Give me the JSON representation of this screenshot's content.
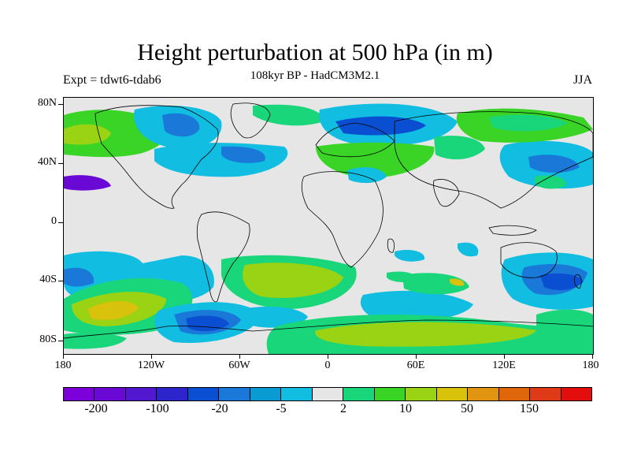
{
  "title": "Height perturbation at 500 hPa (in m)",
  "subtitle": "108kyr BP - HadCM3M2.1",
  "left_label": "Expt = tdwt6-tdab6",
  "right_label": "JJA",
  "axes": {
    "lat_labels": [
      "80N",
      "40N",
      "0",
      "40S",
      "80S"
    ],
    "lon_labels": [
      "180",
      "120W",
      "60W",
      "0",
      "60E",
      "120E",
      "180"
    ]
  },
  "colorbar": {
    "colors": [
      "#7b00d9",
      "#6a08d6",
      "#5218cf",
      "#2e24cc",
      "#0a4fd2",
      "#1a78d8",
      "#0b9bd3",
      "#11bde0",
      "#e6e6e6",
      "#19d67a",
      "#3ad426",
      "#9ad214",
      "#d8c20c",
      "#e19410",
      "#e0660b",
      "#df3a18",
      "#e30d0d"
    ],
    "labels": [
      "-200",
      "-100",
      "-20",
      "-5",
      "2",
      "10",
      "50",
      "150"
    ]
  },
  "colors": {
    "background": "#e6e6e6",
    "coast": "#000000"
  }
}
